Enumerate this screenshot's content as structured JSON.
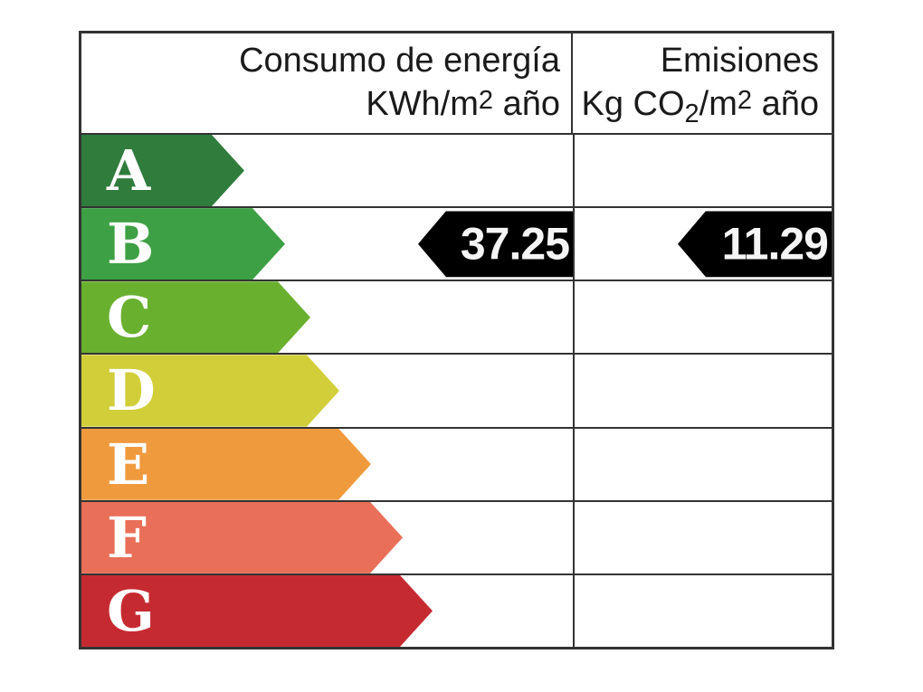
{
  "header": {
    "consumption": {
      "line1": "Consumo de energía",
      "line2_parts": [
        "KWh/m",
        "2",
        " año"
      ]
    },
    "emissions": {
      "line1": "Emisiones",
      "line2_parts": [
        "Kg CO",
        "2",
        "/m",
        "2",
        " año"
      ]
    }
  },
  "scale": {
    "rows": [
      {
        "grade": "A",
        "color": "#2f7c3d",
        "arrow_width": 180
      },
      {
        "grade": "B",
        "color": "#3da044",
        "arrow_width": 225
      },
      {
        "grade": "C",
        "color": "#6ab02f",
        "arrow_width": 253
      },
      {
        "grade": "D",
        "color": "#d1ce39",
        "arrow_width": 285
      },
      {
        "grade": "E",
        "color": "#f09a3e",
        "arrow_width": 320
      },
      {
        "grade": "F",
        "color": "#e96f58",
        "arrow_width": 355
      },
      {
        "grade": "G",
        "color": "#c62a31",
        "arrow_width": 388
      }
    ]
  },
  "indicators": {
    "rating": "B",
    "consumption_value": "37.25",
    "emissions_value": "11.29",
    "arrow_color": "#000000",
    "text_color": "#f5f5f5"
  },
  "chart_data": {
    "type": "bar",
    "title": "Energy efficiency certificate scale",
    "categories": [
      "A",
      "B",
      "C",
      "D",
      "E",
      "F",
      "G"
    ],
    "category_colors": [
      "#2f7c3d",
      "#3da044",
      "#6ab02f",
      "#d1ce39",
      "#f09a3e",
      "#e96f58",
      "#c62a31"
    ],
    "bar_relative_widths": [
      180,
      225,
      253,
      285,
      320,
      355,
      388
    ],
    "columns": [
      "Consumo de energía KWh/m2 año",
      "Emisiones Kg CO2/m2 año"
    ],
    "assigned_rating": "B",
    "series": [
      {
        "name": "Consumo de energía KWh/m2 año",
        "rating": "B",
        "value": 37.25
      },
      {
        "name": "Emisiones Kg CO2/m2 año",
        "rating": "B",
        "value": 11.29
      }
    ],
    "legend_position": "none",
    "grid": true
  }
}
